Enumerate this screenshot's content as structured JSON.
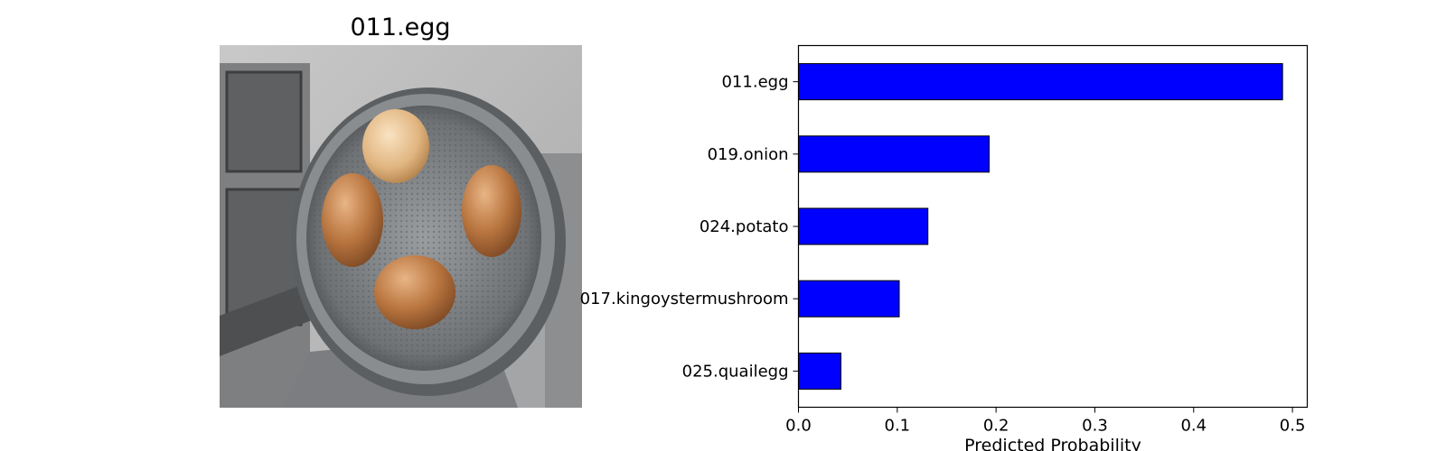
{
  "image_panel": {
    "title": "011.egg"
  },
  "chart_data": {
    "type": "bar",
    "orientation": "horizontal",
    "categories": [
      "011.egg",
      "019.onion",
      "024.potato",
      "017.kingoystermushroom",
      "025.quailegg"
    ],
    "values": [
      0.49,
      0.193,
      0.131,
      0.102,
      0.043
    ],
    "xlabel": "Predicted Probability",
    "ylabel": "",
    "title": "",
    "xlim": [
      0,
      0.515
    ],
    "xticks": [
      0.0,
      0.1,
      0.2,
      0.3,
      0.4,
      0.5
    ],
    "xtick_labels": [
      "0.0",
      "0.1",
      "0.2",
      "0.3",
      "0.4",
      "0.5"
    ],
    "grid": false,
    "bar_color": "#0000ff",
    "bar_edge_color": "#000000"
  }
}
